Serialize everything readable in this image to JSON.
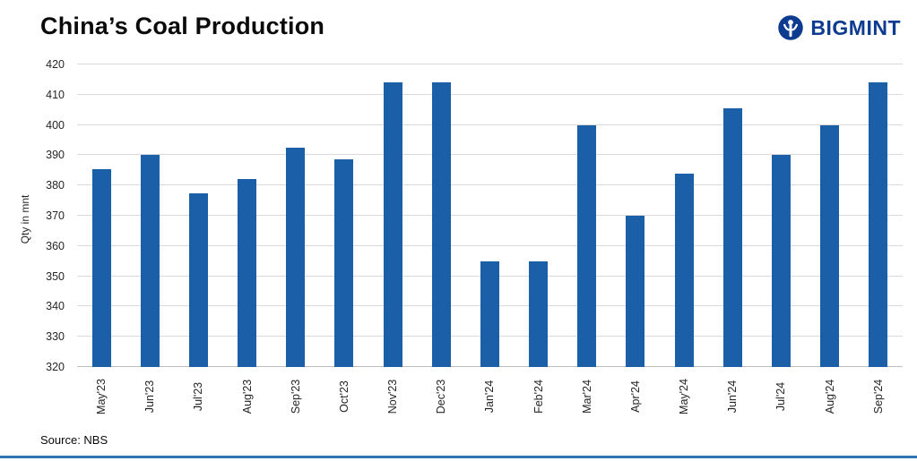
{
  "header": {
    "title": "China’s Coal Production",
    "logo_text": "BIGMINT"
  },
  "source": "Source: NBS",
  "colors": {
    "bar": "#1b5fa8",
    "accent_line": "#2e74b5",
    "logo": "#0d3b8f",
    "gridline": "#d9d9d9"
  },
  "chart_data": {
    "type": "bar",
    "title": "China’s Coal Production",
    "xlabel": "",
    "ylabel": "Qty in mnt",
    "ylim": [
      320,
      420
    ],
    "ytick_step": 10,
    "grid": true,
    "legend": false,
    "categories": [
      "May'23",
      "Jun'23",
      "Jul'23",
      "Aug'23",
      "Sep'23",
      "Oct'23",
      "Nov'23",
      "Dec'23",
      "Jan'24",
      "Feb'24",
      "Mar'24",
      "Apr'24",
      "May'24",
      "Jun'24",
      "Jul'24",
      "Aug'24",
      "Sep'24"
    ],
    "values": [
      385.5,
      390,
      377.5,
      382,
      392.5,
      388.5,
      414,
      414,
      355,
      355,
      400,
      370,
      384,
      405.5,
      390,
      400,
      414
    ],
    "source": "Source: NBS"
  }
}
